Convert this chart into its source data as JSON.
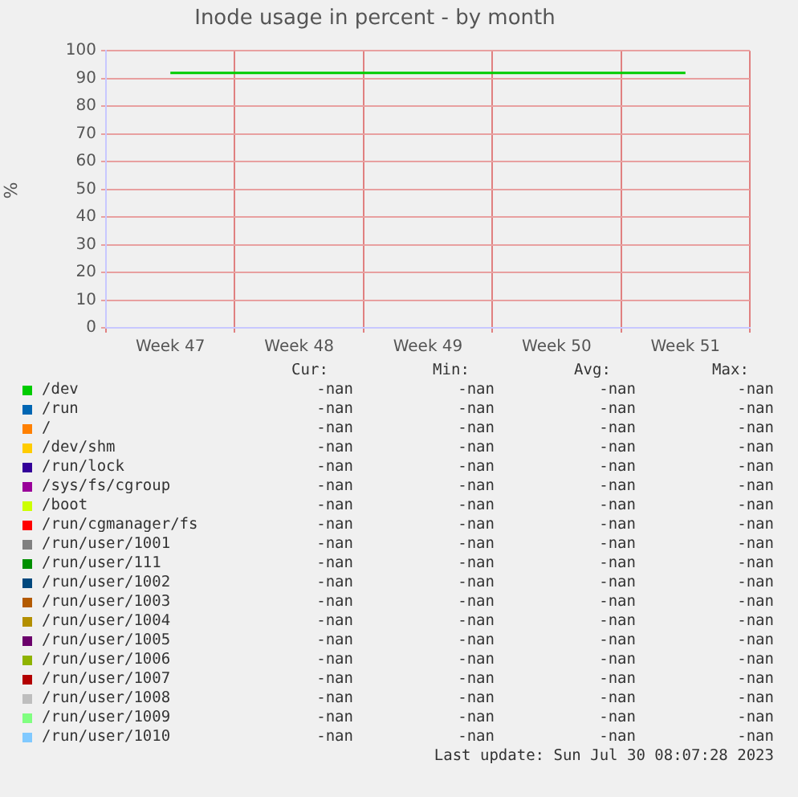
{
  "chart_data": {
    "type": "line",
    "title": "Inode usage in percent - by month",
    "ylabel": "%",
    "categories": [
      "Week 47",
      "Week 48",
      "Week 49",
      "Week 50",
      "Week 51"
    ],
    "ylim": [
      0,
      100
    ],
    "yticks": [
      0,
      10,
      20,
      30,
      40,
      50,
      60,
      70,
      80,
      90,
      100
    ],
    "grid": true,
    "legend": "bottom",
    "marker": "none",
    "line_style": "solid",
    "series": [
      {
        "name": "/dev",
        "color": "#00cc00",
        "values": [
          92,
          92,
          92,
          92,
          92
        ]
      },
      {
        "name": "/run",
        "color": "#0066b3",
        "values": [
          null,
          null,
          null,
          null,
          null
        ]
      },
      {
        "name": "/",
        "color": "#ff8000",
        "values": [
          null,
          null,
          null,
          null,
          null
        ]
      },
      {
        "name": "/dev/shm",
        "color": "#ffcc00",
        "values": [
          null,
          null,
          null,
          null,
          null
        ]
      },
      {
        "name": "/run/lock",
        "color": "#330099",
        "values": [
          null,
          null,
          null,
          null,
          null
        ]
      },
      {
        "name": "/sys/fs/cgroup",
        "color": "#990099",
        "values": [
          null,
          null,
          null,
          null,
          null
        ]
      },
      {
        "name": "/boot",
        "color": "#ccff00",
        "values": [
          null,
          null,
          null,
          null,
          null
        ]
      },
      {
        "name": "/run/cgmanager/fs",
        "color": "#ff0000",
        "values": [
          null,
          null,
          null,
          null,
          null
        ]
      },
      {
        "name": "/run/user/1001",
        "color": "#808080",
        "values": [
          null,
          null,
          null,
          null,
          null
        ]
      },
      {
        "name": "/run/user/111",
        "color": "#008f00",
        "values": [
          null,
          null,
          null,
          null,
          null
        ]
      },
      {
        "name": "/run/user/1002",
        "color": "#00487d",
        "values": [
          null,
          null,
          null,
          null,
          null
        ]
      },
      {
        "name": "/run/user/1003",
        "color": "#b35a00",
        "values": [
          null,
          null,
          null,
          null,
          null
        ]
      },
      {
        "name": "/run/user/1004",
        "color": "#b38f00",
        "values": [
          null,
          null,
          null,
          null,
          null
        ]
      },
      {
        "name": "/run/user/1005",
        "color": "#6b006b",
        "values": [
          null,
          null,
          null,
          null,
          null
        ]
      },
      {
        "name": "/run/user/1006",
        "color": "#8fb300",
        "values": [
          null,
          null,
          null,
          null,
          null
        ]
      },
      {
        "name": "/run/user/1007",
        "color": "#b30000",
        "values": [
          null,
          null,
          null,
          null,
          null
        ]
      },
      {
        "name": "/run/user/1008",
        "color": "#bebebe",
        "values": [
          null,
          null,
          null,
          null,
          null
        ]
      },
      {
        "name": "/run/user/1009",
        "color": "#80ff80",
        "values": [
          null,
          null,
          null,
          null,
          null
        ]
      },
      {
        "name": "/run/user/1010",
        "color": "#80c9ff",
        "values": [
          null,
          null,
          null,
          null,
          null
        ]
      }
    ],
    "annotations": [
      "Cur:",
      "Min:",
      "Avg:",
      "Max:",
      "-nan",
      "-nan",
      "-nan",
      "-nan",
      "-nan",
      "-nan",
      "-nan",
      "-nan",
      "-nan",
      "-nan",
      "-nan",
      "-nan",
      "-nan",
      "-nan",
      "-nan",
      "-nan",
      "-nan",
      "-nan",
      "-nan",
      "-nan",
      "-nan",
      "-nan",
      "-nan",
      "-nan",
      "-nan",
      "-nan",
      "-nan",
      "-nan",
      "-nan",
      "-nan",
      "-nan",
      "-nan",
      "-nan",
      "-nan",
      "-nan",
      "-nan",
      "-nan",
      "-nan",
      "-nan",
      "-nan",
      "-nan",
      "-nan",
      "-nan",
      "-nan",
      "-nan",
      "-nan",
      "-nan",
      "-nan",
      "-nan",
      "-nan",
      "-nan",
      "-nan",
      "-nan",
      "-nan",
      "-nan",
      "-nan",
      "-nan",
      "-nan",
      "-nan",
      "-nan",
      "-nan",
      "-nan",
      "-nan",
      "-nan",
      "-nan",
      "-nan",
      "-nan",
      "-nan",
      "-nan",
      "-nan",
      "-nan",
      "-nan",
      "-nan",
      "-nan",
      "-nan",
      "-nan",
      "Last update: Sun Jul 30 08:07:28 2023"
    ]
  }
}
